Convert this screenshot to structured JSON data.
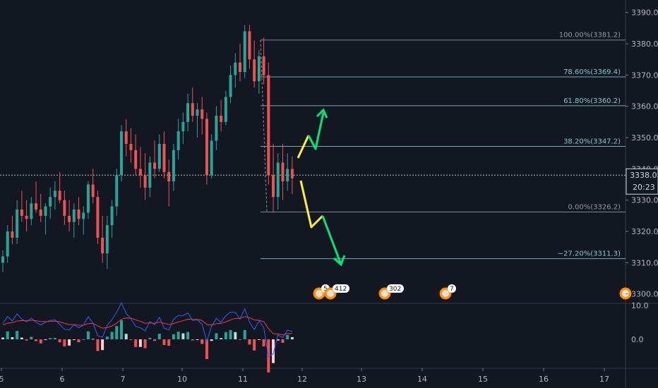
{
  "chart_data": {
    "type": "candlestick",
    "price_axis": {
      "ticks": [
        3390.0,
        3380.0,
        3370.0,
        3360.0,
        3350.0,
        3340.0,
        3330.0,
        3320.0,
        3310.0,
        3300.0
      ],
      "ylim": [
        3297.0,
        3394.0
      ]
    },
    "date_axis": {
      "ticks": [
        "5",
        "6",
        "7",
        "10",
        "11",
        "12",
        "13",
        "14",
        "15",
        "16",
        "17"
      ]
    },
    "current_price": {
      "value": "3338.0",
      "countdown": "20:23"
    },
    "fibonacci": [
      {
        "label": "100.00%(3381.2)",
        "price": 3381.2,
        "color": "#9598a1"
      },
      {
        "label": "78.60%(3369.4)",
        "price": 3369.4,
        "color": "#7fc7d0"
      },
      {
        "label": "61.80%(3360.2)",
        "price": 3360.2,
        "color": "#7fc7d0"
      },
      {
        "label": "38.20%(3347.2)",
        "price": 3347.2,
        "color": "#7fc7d0"
      },
      {
        "label": "0.00%(3326.2)",
        "price": 3326.2,
        "color": "#9598a1"
      },
      {
        "label": "−27.20%(3311.3)",
        "price": 3311.3,
        "color": "#7fc7d0"
      }
    ],
    "candles": [
      [
        3310,
        3314,
        3307,
        3312
      ],
      [
        3312,
        3322,
        3310,
        3320
      ],
      [
        3320,
        3325,
        3316,
        3318
      ],
      [
        3318,
        3330,
        3316,
        3327
      ],
      [
        3327,
        3333,
        3323,
        3325
      ],
      [
        3325,
        3330,
        3320,
        3324
      ],
      [
        3324,
        3331,
        3322,
        3329
      ],
      [
        3329,
        3336,
        3326,
        3327
      ],
      [
        3327,
        3332,
        3323,
        3325
      ],
      [
        3325,
        3329,
        3319,
        3328
      ],
      [
        3328,
        3334,
        3324,
        3331
      ],
      [
        3331,
        3336,
        3327,
        3333
      ],
      [
        3333,
        3339,
        3329,
        3330
      ],
      [
        3330,
        3333,
        3322,
        3325
      ],
      [
        3325,
        3330,
        3320,
        3323
      ],
      [
        3323,
        3329,
        3318,
        3327
      ],
      [
        3327,
        3331,
        3322,
        3324
      ],
      [
        3324,
        3328,
        3319,
        3326
      ],
      [
        3326,
        3336,
        3324,
        3335
      ],
      [
        3335,
        3340,
        3329,
        3331
      ],
      [
        3331,
        3333,
        3316,
        3318
      ],
      [
        3318,
        3325,
        3310,
        3313
      ],
      [
        3313,
        3325,
        3308,
        3322
      ],
      [
        3322,
        3330,
        3318,
        3328
      ],
      [
        3328,
        3340,
        3325,
        3338
      ],
      [
        3338,
        3354,
        3336,
        3352
      ],
      [
        3352,
        3356,
        3344,
        3348
      ],
      [
        3348,
        3353,
        3342,
        3346
      ],
      [
        3346,
        3351,
        3338,
        3340
      ],
      [
        3340,
        3347,
        3334,
        3338
      ],
      [
        3338,
        3345,
        3330,
        3334
      ],
      [
        3334,
        3344,
        3331,
        3342
      ],
      [
        3342,
        3349,
        3337,
        3340
      ],
      [
        3340,
        3351,
        3339,
        3348
      ],
      [
        3348,
        3352,
        3337,
        3339
      ],
      [
        3339,
        3343,
        3328,
        3336
      ],
      [
        3336,
        3348,
        3333,
        3346
      ],
      [
        3346,
        3356,
        3343,
        3352
      ],
      [
        3352,
        3358,
        3348,
        3355
      ],
      [
        3355,
        3364,
        3352,
        3361
      ],
      [
        3361,
        3366,
        3355,
        3357
      ],
      [
        3357,
        3361,
        3350,
        3359
      ],
      [
        3359,
        3363,
        3351,
        3356
      ],
      [
        3356,
        3358,
        3335,
        3338
      ],
      [
        3338,
        3351,
        3337,
        3349
      ],
      [
        3349,
        3360,
        3346,
        3357
      ],
      [
        3357,
        3362,
        3352,
        3355
      ],
      [
        3355,
        3365,
        3354,
        3363
      ],
      [
        3363,
        3373,
        3361,
        3370
      ],
      [
        3370,
        3377,
        3366,
        3374
      ],
      [
        3374,
        3380,
        3368,
        3371
      ],
      [
        3371,
        3386,
        3369,
        3384
      ],
      [
        3384,
        3386,
        3372,
        3375
      ],
      [
        3375,
        3381,
        3366,
        3368
      ],
      [
        3368,
        3378,
        3364,
        3376
      ],
      [
        3376,
        3382,
        3367,
        3370
      ],
      [
        3370,
        3374,
        3335,
        3338
      ],
      [
        3338,
        3348,
        3326,
        3331
      ],
      [
        3331,
        3345,
        3327,
        3342
      ],
      [
        3342,
        3348,
        3330,
        3336
      ],
      [
        3336,
        3345,
        3333,
        3340
      ],
      [
        3340,
        3344,
        3332,
        3337
      ]
    ],
    "macd": {
      "hist_scale": [
        -5,
        10
      ],
      "zero_label": "0.0",
      "top_label": "10.0"
    },
    "event_badges": [
      "5",
      "412",
      "302",
      "7"
    ]
  }
}
